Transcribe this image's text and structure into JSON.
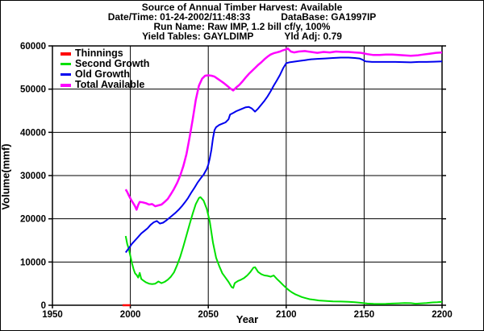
{
  "header": {
    "line1": "Source of Annual Timber Harvest: Available",
    "line2_left": "Date/Time: 01-24-2002/11:48:33",
    "line2_right": "DataBase: GA1997IP",
    "line3": "Run Name: Raw IMP, 1.2 bill cf/y, 100%",
    "line4_left": "Yield Tables: GAYLDIMP",
    "line4_right": "Yld Adj: 0.79"
  },
  "chart_data": {
    "type": "line",
    "title": "Source of Annual Timber Harvest: Available",
    "xlabel": "Year",
    "ylabel": "Volume(mmf)",
    "xlim": [
      1950,
      2200
    ],
    "ylim": [
      0,
      60000
    ],
    "xticks": [
      1950,
      2000,
      2050,
      2100,
      2150,
      2200
    ],
    "yticks": [
      0,
      10000,
      20000,
      30000,
      40000,
      50000,
      60000
    ],
    "grid": true,
    "legend_position": "top-left",
    "series": [
      {
        "name": "Thinnings",
        "color": "#ff0000",
        "points": [
          [
            1995,
            0
          ],
          [
            2000,
            0
          ]
        ]
      },
      {
        "name": "Second Growth",
        "color": "#00e000",
        "points": [
          [
            1997,
            16000
          ],
          [
            1998,
            14200
          ],
          [
            1999,
            13000
          ],
          [
            2000,
            11400
          ],
          [
            2001,
            9800
          ],
          [
            2002,
            8400
          ],
          [
            2003,
            7400
          ],
          [
            2004,
            7000
          ],
          [
            2005,
            6400
          ],
          [
            2006,
            7500
          ],
          [
            2007,
            6100
          ],
          [
            2008,
            5800
          ],
          [
            2010,
            5300
          ],
          [
            2012,
            5000
          ],
          [
            2014,
            4900
          ],
          [
            2016,
            5000
          ],
          [
            2018,
            5500
          ],
          [
            2020,
            5100
          ],
          [
            2022,
            5400
          ],
          [
            2024,
            5900
          ],
          [
            2026,
            6600
          ],
          [
            2028,
            7600
          ],
          [
            2030,
            9300
          ],
          [
            2032,
            11200
          ],
          [
            2034,
            13600
          ],
          [
            2036,
            16200
          ],
          [
            2038,
            18700
          ],
          [
            2040,
            21200
          ],
          [
            2042,
            23400
          ],
          [
            2044,
            24800
          ],
          [
            2045,
            25000
          ],
          [
            2047,
            24200
          ],
          [
            2049,
            22300
          ],
          [
            2051,
            19300
          ],
          [
            2053,
            14500
          ],
          [
            2055,
            11000
          ],
          [
            2057,
            9100
          ],
          [
            2059,
            7400
          ],
          [
            2061,
            6400
          ],
          [
            2063,
            5400
          ],
          [
            2065,
            4200
          ],
          [
            2066,
            4000
          ],
          [
            2067,
            5100
          ],
          [
            2069,
            5600
          ],
          [
            2071,
            5900
          ],
          [
            2073,
            6300
          ],
          [
            2075,
            6900
          ],
          [
            2077,
            7700
          ],
          [
            2079,
            8700
          ],
          [
            2080,
            8800
          ],
          [
            2082,
            7700
          ],
          [
            2084,
            7200
          ],
          [
            2086,
            6900
          ],
          [
            2088,
            6800
          ],
          [
            2090,
            6600
          ],
          [
            2092,
            6900
          ],
          [
            2094,
            6100
          ],
          [
            2096,
            5400
          ],
          [
            2098,
            4700
          ],
          [
            2100,
            4000
          ],
          [
            2102,
            3400
          ],
          [
            2104,
            2900
          ],
          [
            2106,
            2500
          ],
          [
            2108,
            2200
          ],
          [
            2110,
            1900
          ],
          [
            2112,
            1700
          ],
          [
            2115,
            1400
          ],
          [
            2118,
            1250
          ],
          [
            2121,
            1100
          ],
          [
            2125,
            1000
          ],
          [
            2130,
            900
          ],
          [
            2135,
            850
          ],
          [
            2140,
            800
          ],
          [
            2144,
            700
          ],
          [
            2148,
            550
          ],
          [
            2152,
            400
          ],
          [
            2156,
            320
          ],
          [
            2160,
            300
          ],
          [
            2164,
            320
          ],
          [
            2168,
            400
          ],
          [
            2172,
            450
          ],
          [
            2176,
            520
          ],
          [
            2180,
            480
          ],
          [
            2183,
            350
          ],
          [
            2186,
            420
          ],
          [
            2190,
            520
          ],
          [
            2194,
            650
          ],
          [
            2197,
            700
          ],
          [
            2200,
            800
          ]
        ]
      },
      {
        "name": "Old Growth",
        "color": "#0000ee",
        "points": [
          [
            1997,
            12200
          ],
          [
            1999,
            13200
          ],
          [
            2001,
            14200
          ],
          [
            2003,
            15000
          ],
          [
            2005,
            15800
          ],
          [
            2007,
            16600
          ],
          [
            2009,
            17200
          ],
          [
            2011,
            17800
          ],
          [
            2013,
            18600
          ],
          [
            2015,
            19200
          ],
          [
            2017,
            19500
          ],
          [
            2019,
            18900
          ],
          [
            2021,
            19100
          ],
          [
            2023,
            19600
          ],
          [
            2025,
            20200
          ],
          [
            2027,
            20800
          ],
          [
            2029,
            21400
          ],
          [
            2031,
            22100
          ],
          [
            2033,
            22900
          ],
          [
            2035,
            23800
          ],
          [
            2037,
            24800
          ],
          [
            2039,
            26000
          ],
          [
            2041,
            27100
          ],
          [
            2043,
            28300
          ],
          [
            2045,
            29300
          ],
          [
            2047,
            30200
          ],
          [
            2049,
            31500
          ],
          [
            2050,
            32500
          ],
          [
            2051,
            34000
          ],
          [
            2052,
            36000
          ],
          [
            2053,
            38600
          ],
          [
            2054,
            40500
          ],
          [
            2055,
            41200
          ],
          [
            2057,
            41700
          ],
          [
            2059,
            42000
          ],
          [
            2061,
            42300
          ],
          [
            2063,
            43000
          ],
          [
            2064,
            44100
          ],
          [
            2066,
            44500
          ],
          [
            2068,
            44900
          ],
          [
            2070,
            45200
          ],
          [
            2072,
            45500
          ],
          [
            2074,
            45800
          ],
          [
            2076,
            45900
          ],
          [
            2078,
            45500
          ],
          [
            2080,
            44800
          ],
          [
            2082,
            45500
          ],
          [
            2084,
            46400
          ],
          [
            2086,
            47300
          ],
          [
            2088,
            48300
          ],
          [
            2090,
            49500
          ],
          [
            2092,
            50800
          ],
          [
            2094,
            52000
          ],
          [
            2096,
            53300
          ],
          [
            2098,
            54800
          ],
          [
            2100,
            56000
          ],
          [
            2102,
            56200
          ],
          [
            2104,
            56300
          ],
          [
            2108,
            56500
          ],
          [
            2112,
            56700
          ],
          [
            2116,
            56900
          ],
          [
            2120,
            57000
          ],
          [
            2125,
            57100
          ],
          [
            2130,
            57200
          ],
          [
            2135,
            57300
          ],
          [
            2140,
            57300
          ],
          [
            2144,
            57200
          ],
          [
            2147,
            57100
          ],
          [
            2149,
            56800
          ],
          [
            2151,
            56400
          ],
          [
            2155,
            56300
          ],
          [
            2160,
            56300
          ],
          [
            2165,
            56300
          ],
          [
            2170,
            56300
          ],
          [
            2175,
            56250
          ],
          [
            2180,
            56200
          ],
          [
            2185,
            56300
          ],
          [
            2190,
            56300
          ],
          [
            2195,
            56350
          ],
          [
            2200,
            56400
          ]
        ]
      },
      {
        "name": "Total Available",
        "color": "#ff00ff",
        "points": [
          [
            1997,
            26800
          ],
          [
            1998,
            26200
          ],
          [
            1999,
            25400
          ],
          [
            2000,
            24700
          ],
          [
            2001,
            24100
          ],
          [
            2002,
            23500
          ],
          [
            2003,
            22900
          ],
          [
            2004,
            22100
          ],
          [
            2005,
            23200
          ],
          [
            2006,
            23900
          ],
          [
            2008,
            23800
          ],
          [
            2010,
            23600
          ],
          [
            2012,
            23300
          ],
          [
            2014,
            23400
          ],
          [
            2016,
            22900
          ],
          [
            2018,
            23100
          ],
          [
            2020,
            23300
          ],
          [
            2022,
            23900
          ],
          [
            2024,
            24600
          ],
          [
            2026,
            25700
          ],
          [
            2028,
            26900
          ],
          [
            2030,
            28300
          ],
          [
            2032,
            30000
          ],
          [
            2034,
            32200
          ],
          [
            2036,
            35000
          ],
          [
            2038,
            38800
          ],
          [
            2040,
            43000
          ],
          [
            2042,
            47500
          ],
          [
            2044,
            50800
          ],
          [
            2046,
            52400
          ],
          [
            2048,
            53100
          ],
          [
            2050,
            53200
          ],
          [
            2052,
            53100
          ],
          [
            2054,
            52900
          ],
          [
            2056,
            52400
          ],
          [
            2058,
            51900
          ],
          [
            2060,
            51400
          ],
          [
            2062,
            50800
          ],
          [
            2064,
            50200
          ],
          [
            2066,
            49700
          ],
          [
            2068,
            50400
          ],
          [
            2070,
            51000
          ],
          [
            2072,
            51800
          ],
          [
            2074,
            52700
          ],
          [
            2076,
            53500
          ],
          [
            2078,
            54200
          ],
          [
            2080,
            54900
          ],
          [
            2082,
            55600
          ],
          [
            2084,
            56200
          ],
          [
            2086,
            56900
          ],
          [
            2088,
            57500
          ],
          [
            2090,
            58000
          ],
          [
            2092,
            58300
          ],
          [
            2094,
            58500
          ],
          [
            2096,
            58700
          ],
          [
            2098,
            59000
          ],
          [
            2100,
            59200
          ],
          [
            2101,
            59400
          ],
          [
            2103,
            58700
          ],
          [
            2105,
            58500
          ],
          [
            2108,
            58700
          ],
          [
            2112,
            58800
          ],
          [
            2116,
            58600
          ],
          [
            2120,
            58400
          ],
          [
            2124,
            58600
          ],
          [
            2128,
            58500
          ],
          [
            2132,
            58700
          ],
          [
            2136,
            58600
          ],
          [
            2140,
            58600
          ],
          [
            2144,
            58500
          ],
          [
            2148,
            58400
          ],
          [
            2152,
            58100
          ],
          [
            2156,
            57900
          ],
          [
            2160,
            57900
          ],
          [
            2164,
            58000
          ],
          [
            2168,
            58000
          ],
          [
            2172,
            57900
          ],
          [
            2176,
            57800
          ],
          [
            2180,
            57700
          ],
          [
            2184,
            57800
          ],
          [
            2188,
            58000
          ],
          [
            2192,
            58200
          ],
          [
            2196,
            58400
          ],
          [
            2200,
            58500
          ]
        ]
      }
    ]
  }
}
